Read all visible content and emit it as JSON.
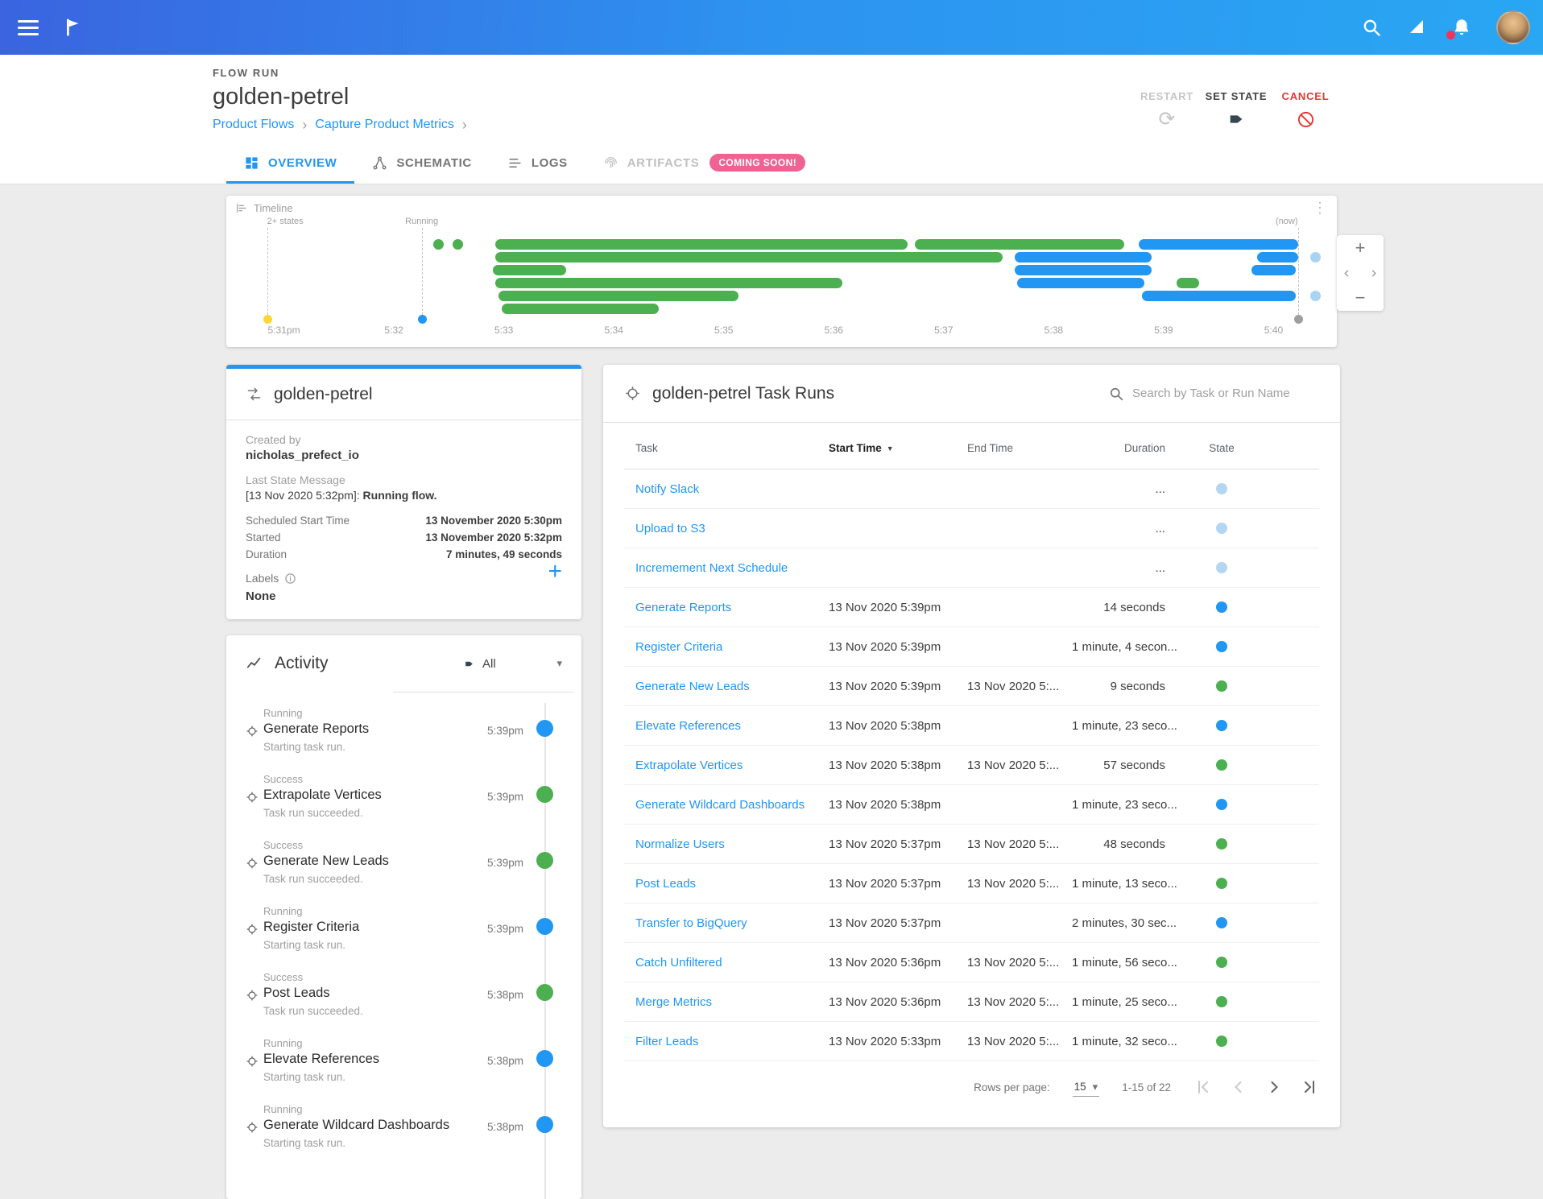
{
  "colors": {
    "accent": "#2196f3",
    "success": "#4caf50",
    "running": "#2196f3",
    "pending": "#b3d7f2",
    "cancel": "#e53935",
    "badge_pink": "#f06292",
    "notification_badge": "#f5325b",
    "warning_dot": "#fdd835"
  },
  "icons": {
    "kebab": "⋮",
    "caret_down": "▾",
    "sort_desc": "▼",
    "plus": "+",
    "minus": "−",
    "restart": "⟳"
  },
  "header": {
    "kicker": "FLOW RUN",
    "title": "golden-petrel",
    "breadcrumb": {
      "items": [
        "Product Flows",
        "Capture Product Metrics"
      ],
      "separator": "›"
    },
    "actions": [
      {
        "label": "RESTART"
      },
      {
        "label": "SET STATE"
      },
      {
        "label": "CANCEL"
      }
    ]
  },
  "tabs": [
    {
      "label": "OVERVIEW",
      "active": true
    },
    {
      "label": "SCHEMATIC"
    },
    {
      "label": "LOGS"
    },
    {
      "label": "ARTIFACTS",
      "badge": "COMING SOON!",
      "disabled": true
    }
  ],
  "timeline": {
    "title": "Timeline",
    "axis_ticks": [
      "5:31pm",
      "5:32",
      "5:33",
      "5:34",
      "5:35",
      "5:36",
      "5:37",
      "5:38",
      "5:39",
      "5:40"
    ],
    "markers": [
      {
        "label": "2+ states",
        "pos": 1.2,
        "color": "#fdd835",
        "align": "left"
      },
      {
        "label": "Running",
        "pos": 15.9,
        "color": "#2196f3",
        "align": "center"
      },
      {
        "label": "(now)",
        "pos": 99.2,
        "color": "#9e9e9e",
        "align": "right"
      }
    ],
    "bars": [
      {
        "row": 0,
        "start": 17.0,
        "end": 18.0,
        "color": "green"
      },
      {
        "row": 0,
        "start": 18.8,
        "end": 19.8,
        "color": "green"
      },
      {
        "row": 0,
        "start": 22.9,
        "end": 62.1,
        "color": "green"
      },
      {
        "row": 0,
        "start": 62.8,
        "end": 82.7,
        "color": "green"
      },
      {
        "row": 0,
        "start": 84.1,
        "end": 99.2,
        "color": "blue"
      },
      {
        "row": 1,
        "start": 22.9,
        "end": 71.1,
        "color": "green"
      },
      {
        "row": 1,
        "start": 72.3,
        "end": 85.3,
        "color": "blue"
      },
      {
        "row": 1,
        "start": 95.3,
        "end": 99.2,
        "color": "blue"
      },
      {
        "row": 1,
        "start": 100.4,
        "end": 101.4,
        "color": "lightblue"
      },
      {
        "row": 2,
        "start": 22.7,
        "end": 29.6,
        "color": "green"
      },
      {
        "row": 2,
        "start": 72.3,
        "end": 85.3,
        "color": "blue"
      },
      {
        "row": 2,
        "start": 94.8,
        "end": 99.0,
        "color": "blue"
      },
      {
        "row": 3,
        "start": 22.9,
        "end": 55.9,
        "color": "green"
      },
      {
        "row": 3,
        "start": 72.5,
        "end": 84.6,
        "color": "blue"
      },
      {
        "row": 3,
        "start": 87.7,
        "end": 89.8,
        "color": "green"
      },
      {
        "row": 4,
        "start": 23.2,
        "end": 46.0,
        "color": "green"
      },
      {
        "row": 4,
        "start": 84.4,
        "end": 99.0,
        "color": "blue"
      },
      {
        "row": 4,
        "start": 100.4,
        "end": 101.4,
        "color": "lightblue"
      },
      {
        "row": 5,
        "start": 23.5,
        "end": 38.4,
        "color": "green"
      }
    ]
  },
  "flow_card": {
    "title": "golden-petrel",
    "created_by_label": "Created by",
    "created_by": "nicholas_prefect_io",
    "last_state_label": "Last State Message",
    "last_state_prefix": "[13 Nov 2020 5:32pm]: ",
    "last_state_value": "Running flow.",
    "details": [
      {
        "label": "Scheduled Start Time",
        "value": "13 November 2020 5:30pm"
      },
      {
        "label": "Started",
        "value": "13 November 2020 5:32pm"
      },
      {
        "label": "Duration",
        "value": "7 minutes, 49 seconds"
      }
    ],
    "labels_label": "Labels",
    "labels_value": "None"
  },
  "activity": {
    "title": "Activity",
    "filter_value": "All",
    "items": [
      {
        "status": "Running",
        "name": "Generate Reports",
        "detail": "Starting task run.",
        "time": "5:39pm",
        "state": "running"
      },
      {
        "status": "Success",
        "name": "Extrapolate Vertices",
        "detail": "Task run succeeded.",
        "time": "5:39pm",
        "state": "success"
      },
      {
        "status": "Success",
        "name": "Generate New Leads",
        "detail": "Task run succeeded.",
        "time": "5:39pm",
        "state": "success"
      },
      {
        "status": "Running",
        "name": "Register Criteria",
        "detail": "Starting task run.",
        "time": "5:39pm",
        "state": "running"
      },
      {
        "status": "Success",
        "name": "Post Leads",
        "detail": "Task run succeeded.",
        "time": "5:38pm",
        "state": "success"
      },
      {
        "status": "Running",
        "name": "Elevate References",
        "detail": "Starting task run.",
        "time": "5:38pm",
        "state": "running"
      },
      {
        "status": "Running",
        "name": "Generate Wildcard Dashboards",
        "detail": "Starting task run.",
        "time": "5:38pm",
        "state": "running"
      }
    ]
  },
  "task_runs": {
    "title": "golden-petrel Task Runs",
    "search_placeholder": "Search by Task or Run Name",
    "columns": [
      "Task",
      "Start Time",
      "End Time",
      "Duration",
      "State"
    ],
    "rows": [
      {
        "task": "Notify Slack",
        "start": "",
        "end": "",
        "duration": "...",
        "state": "pending"
      },
      {
        "task": "Upload to S3",
        "start": "",
        "end": "",
        "duration": "...",
        "state": "pending"
      },
      {
        "task": "Incremement Next Schedule",
        "start": "",
        "end": "",
        "duration": "...",
        "state": "pending"
      },
      {
        "task": "Generate Reports",
        "start": "13 Nov 2020 5:39pm",
        "end": "",
        "duration": "14 seconds",
        "state": "running"
      },
      {
        "task": "Register Criteria",
        "start": "13 Nov 2020 5:39pm",
        "end": "",
        "duration": "1 minute, 4 secon...",
        "state": "running"
      },
      {
        "task": "Generate New Leads",
        "start": "13 Nov 2020 5:39pm",
        "end": "13 Nov 2020 5:...",
        "duration": "9 seconds",
        "state": "success"
      },
      {
        "task": "Elevate References",
        "start": "13 Nov 2020 5:38pm",
        "end": "",
        "duration": "1 minute, 23 seco...",
        "state": "running"
      },
      {
        "task": "Extrapolate Vertices",
        "start": "13 Nov 2020 5:38pm",
        "end": "13 Nov 2020 5:...",
        "duration": "57 seconds",
        "state": "success"
      },
      {
        "task": "Generate Wildcard Dashboards",
        "start": "13 Nov 2020 5:38pm",
        "end": "",
        "duration": "1 minute, 23 seco...",
        "state": "running"
      },
      {
        "task": "Normalize Users",
        "start": "13 Nov 2020 5:37pm",
        "end": "13 Nov 2020 5:...",
        "duration": "48 seconds",
        "state": "success"
      },
      {
        "task": "Post Leads",
        "start": "13 Nov 2020 5:37pm",
        "end": "13 Nov 2020 5:...",
        "duration": "1 minute, 13 seco...",
        "state": "success"
      },
      {
        "task": "Transfer to BigQuery",
        "start": "13 Nov 2020 5:37pm",
        "end": "",
        "duration": "2 minutes, 30 sec...",
        "state": "running"
      },
      {
        "task": "Catch Unfiltered",
        "start": "13 Nov 2020 5:36pm",
        "end": "13 Nov 2020 5:...",
        "duration": "1 minute, 56 seco...",
        "state": "success"
      },
      {
        "task": "Merge Metrics",
        "start": "13 Nov 2020 5:36pm",
        "end": "13 Nov 2020 5:...",
        "duration": "1 minute, 25 seco...",
        "state": "success"
      },
      {
        "task": "Filter Leads",
        "start": "13 Nov 2020 5:33pm",
        "end": "13 Nov 2020 5:...",
        "duration": "1 minute, 32 seco...",
        "state": "success"
      }
    ],
    "pagination": {
      "rows_per_page_label": "Rows per page:",
      "rows_per_page_value": "15",
      "range": "1-15 of 22"
    }
  }
}
